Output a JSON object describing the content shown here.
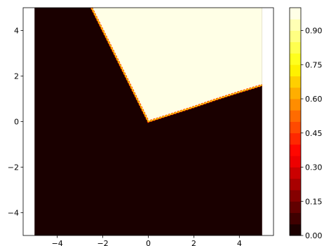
{
  "chart_data": {
    "type": "heatmap",
    "subtype": "filled-contour",
    "title": "",
    "xlabel": "",
    "ylabel": "",
    "xlim": [
      -5.5,
      5.5
    ],
    "ylim": [
      -5,
      5
    ],
    "data_x_range": [
      -5,
      5
    ],
    "data_y_range": [
      -5,
      5
    ],
    "x_ticks": [
      -4,
      -2,
      0,
      2,
      4
    ],
    "y_ticks": [
      -4,
      -2,
      0,
      2,
      4
    ],
    "x_tick_labels": [
      "−4",
      "−2",
      "0",
      "2",
      "4"
    ],
    "y_tick_labels": [
      "−4",
      "−2",
      "0",
      "2",
      "4"
    ],
    "grid": false,
    "colormap": "hot",
    "low_color": "#1a0000",
    "high_color": "#ffffe6",
    "boundary_polyline": [
      {
        "x": -2.5,
        "y": 5.0
      },
      {
        "x": 0.0,
        "y": 0.0
      },
      {
        "x": 1.0,
        "y": 0.32
      },
      {
        "x": 2.0,
        "y": 0.64
      },
      {
        "x": 3.0,
        "y": 0.98
      },
      {
        "x": 4.0,
        "y": 1.3
      },
      {
        "x": 5.0,
        "y": 1.6
      }
    ],
    "high_region": "upper-right of boundary",
    "colorbar": {
      "min": 0.0,
      "max": 1.0,
      "levels": 20,
      "ticks": [
        0.0,
        0.15,
        0.3,
        0.45,
        0.6,
        0.75,
        0.9
      ],
      "tick_labels": [
        "0.00",
        "0.15",
        "0.30",
        "0.45",
        "0.60",
        "0.75",
        "0.90"
      ],
      "placement": "right"
    }
  }
}
